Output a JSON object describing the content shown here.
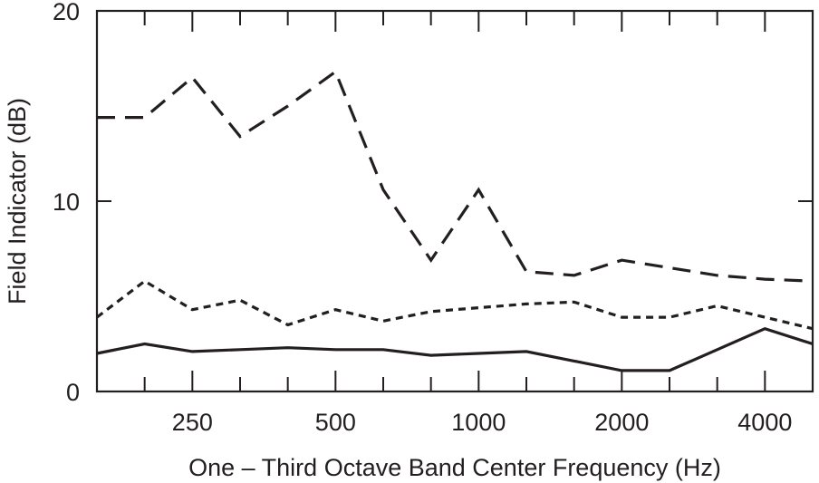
{
  "chart_data": {
    "type": "line",
    "title": "",
    "xlabel": "One – Third Octave Band Center Frequency (Hz)",
    "ylabel": "Field Indicator (dB)",
    "xscale": "log (one-third octave bands)",
    "x": [
      160,
      200,
      250,
      315,
      400,
      500,
      630,
      800,
      1000,
      1250,
      1600,
      2000,
      2500,
      3150,
      4000,
      5000
    ],
    "x_tick_labels": [
      "250",
      "500",
      "1000",
      "2000",
      "4000"
    ],
    "x_tick_values": [
      250,
      500,
      1000,
      2000,
      4000
    ],
    "y_tick_labels": [
      "0",
      "10",
      "20"
    ],
    "y_tick_values": [
      0,
      10,
      20
    ],
    "ylim": [
      0,
      20
    ],
    "grid": false,
    "legend": null,
    "series": [
      {
        "name": "dashed (long dash)",
        "style": "dashed",
        "values": [
          14.4,
          14.4,
          16.5,
          13.4,
          15.0,
          16.8,
          10.6,
          6.9,
          10.6,
          6.3,
          6.1,
          6.9,
          6.5,
          6.1,
          5.9,
          5.8
        ]
      },
      {
        "name": "dotted (short dash)",
        "style": "dotted",
        "values": [
          3.9,
          5.8,
          4.3,
          4.8,
          3.5,
          4.3,
          3.7,
          4.2,
          4.4,
          4.6,
          4.7,
          3.9,
          3.9,
          4.5,
          3.9,
          3.3
        ]
      },
      {
        "name": "solid",
        "style": "solid",
        "values": [
          2.0,
          2.5,
          2.1,
          2.2,
          2.3,
          2.2,
          2.2,
          1.9,
          2.0,
          2.1,
          1.6,
          1.1,
          1.1,
          2.2,
          3.3,
          2.5
        ]
      }
    ]
  },
  "colors": {
    "ink": "#231f20",
    "background": "#ffffff"
  }
}
